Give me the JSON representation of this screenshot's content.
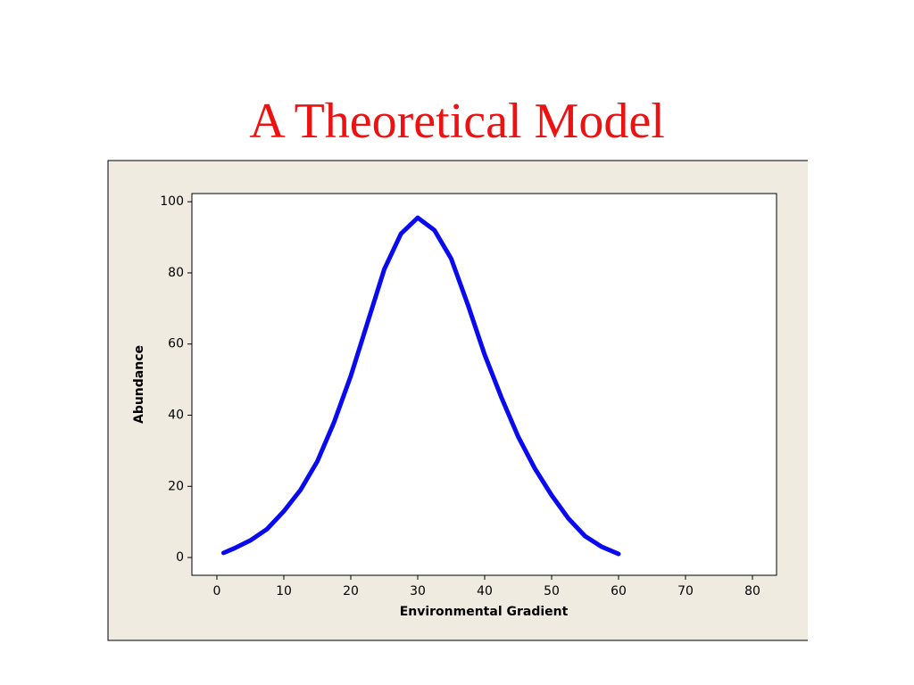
{
  "chart_data": {
    "type": "line",
    "title": "A Theoretical Model",
    "x_label": "Environmental Gradient",
    "y_label": "Abundance",
    "x": [
      1,
      2.5,
      5,
      7.5,
      10,
      12.5,
      15,
      17.5,
      20,
      22.5,
      25,
      27.5,
      30,
      32.5,
      35,
      37.5,
      40,
      42.5,
      45,
      47.5,
      50,
      52.5,
      55,
      57.5,
      60
    ],
    "series": [
      {
        "color": "#0a0aee",
        "values": [
          1.3,
          2.5,
          4.8,
          8,
          13,
          19,
          27,
          38,
          51,
          66,
          81,
          91,
          95.5,
          92,
          84,
          71,
          57,
          45,
          34,
          25,
          17.5,
          11,
          6,
          3,
          1
        ]
      }
    ],
    "xlim": [
      -3.73,
      83.6
    ],
    "xticks": [
      0,
      10,
      20,
      30,
      40,
      50,
      60,
      70,
      80
    ],
    "ylim": [
      -5,
      102.3
    ],
    "yticks": [
      0,
      20,
      40,
      60,
      80,
      100
    ]
  }
}
